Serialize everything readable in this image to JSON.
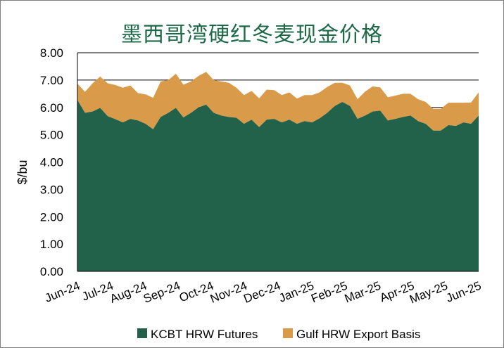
{
  "chart_data": {
    "type": "area",
    "stacked": true,
    "title": "墨西哥湾硬红冬麦现金价格",
    "xlabel": "",
    "ylabel": "$/bu",
    "ylim": [
      0,
      8
    ],
    "yticks": [
      "0.00",
      "1.00",
      "2.00",
      "3.00",
      "4.00",
      "5.00",
      "6.00",
      "7.00",
      "8.00"
    ],
    "xticks": [
      "Jun-24",
      "Jul-24",
      "Aug-24",
      "Sep-24",
      "Oct-24",
      "Nov-24",
      "Dec-24",
      "Jan-25",
      "Feb-25",
      "Mar-25",
      "Apr-25",
      "May-25",
      "Jun-25"
    ],
    "grid": "horizontal",
    "legend_position": "bottom",
    "series": [
      {
        "name": "KCBT HRW Futures",
        "color": "#22614a",
        "values": [
          6.27,
          5.8,
          5.85,
          5.98,
          5.68,
          5.57,
          5.45,
          5.58,
          5.52,
          5.4,
          5.2,
          5.65,
          5.8,
          5.98,
          5.63,
          5.8,
          6.0,
          6.1,
          5.8,
          5.7,
          5.65,
          5.62,
          5.4,
          5.55,
          5.28,
          5.55,
          5.58,
          5.45,
          5.55,
          5.4,
          5.5,
          5.45,
          5.6,
          5.8,
          6.05,
          6.2,
          6.05,
          5.58,
          5.7,
          5.85,
          5.88,
          5.52,
          5.58,
          5.65,
          5.7,
          5.5,
          5.4,
          5.15,
          5.15,
          5.35,
          5.32,
          5.45,
          5.4,
          5.7
        ]
      },
      {
        "name": "Gulf HRW Export Basis",
        "color": "#d99b49",
        "values": [
          0.6,
          0.77,
          1.03,
          1.15,
          1.2,
          1.25,
          1.27,
          1.22,
          1.0,
          1.08,
          1.15,
          1.3,
          1.2,
          1.25,
          1.2,
          1.15,
          1.15,
          1.2,
          1.2,
          1.25,
          1.25,
          1.1,
          1.05,
          1.05,
          1.05,
          1.1,
          1.05,
          1.0,
          1.0,
          0.92,
          0.95,
          1.0,
          0.95,
          0.95,
          0.85,
          0.7,
          0.75,
          0.72,
          0.88,
          0.92,
          0.85,
          0.85,
          0.85,
          0.85,
          0.8,
          0.8,
          0.8,
          0.8,
          0.8,
          0.82,
          0.85,
          0.72,
          0.78,
          0.85
        ]
      }
    ]
  }
}
